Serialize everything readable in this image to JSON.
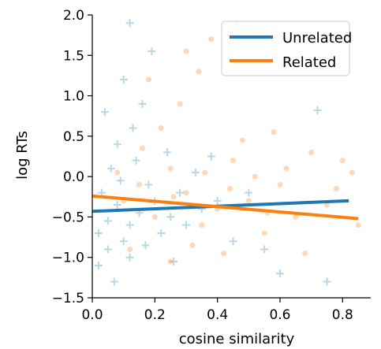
{
  "chart_data": {
    "type": "scatter",
    "xlabel": "cosine similarity",
    "ylabel": "log RTs",
    "xlim": [
      0.0,
      0.89
    ],
    "ylim": [
      -1.5,
      2.0
    ],
    "x_ticks": [
      "0.0",
      "0.2",
      "0.4",
      "0.6",
      "0.8"
    ],
    "x_tick_values": [
      0.0,
      0.2,
      0.4,
      0.6,
      0.8
    ],
    "y_ticks": [
      "−1.5",
      "−1.0",
      "−0.5",
      "0.0",
      "0.5",
      "1.0",
      "1.5",
      "2.0"
    ],
    "y_tick_values": [
      -1.5,
      -1.0,
      -0.5,
      0.0,
      0.5,
      1.0,
      1.5,
      2.0
    ],
    "legend_position": "top-right",
    "grid": false,
    "series": [
      {
        "name": "Unrelated",
        "color": "#1f77b4",
        "marker": "plus",
        "marker_opacity": 0.15,
        "fit_line": {
          "x": [
            0.0,
            0.82
          ],
          "y": [
            -0.43,
            -0.3
          ]
        },
        "points": [
          {
            "x": 0.02,
            "y": -0.7
          },
          {
            "x": 0.05,
            "y": -0.9
          },
          {
            "x": 0.08,
            "y": -0.35
          },
          {
            "x": 0.03,
            "y": -0.2
          },
          {
            "x": 0.1,
            "y": -0.8
          },
          {
            "x": 0.12,
            "y": -0.6
          },
          {
            "x": 0.06,
            "y": 0.1
          },
          {
            "x": 0.15,
            "y": -0.45
          },
          {
            "x": 0.18,
            "y": -0.1
          },
          {
            "x": 0.2,
            "y": -0.3
          },
          {
            "x": 0.22,
            "y": -0.7
          },
          {
            "x": 0.25,
            "y": -0.5
          },
          {
            "x": 0.08,
            "y": 0.4
          },
          {
            "x": 0.04,
            "y": 0.8
          },
          {
            "x": 0.14,
            "y": 0.2
          },
          {
            "x": 0.28,
            "y": -0.2
          },
          {
            "x": 0.3,
            "y": -0.6
          },
          {
            "x": 0.35,
            "y": -0.4
          },
          {
            "x": 0.1,
            "y": 1.2
          },
          {
            "x": 0.16,
            "y": 0.9
          },
          {
            "x": 0.02,
            "y": -1.1
          },
          {
            "x": 0.07,
            "y": -1.3
          },
          {
            "x": 0.12,
            "y": -1.0
          },
          {
            "x": 0.4,
            "y": -0.3
          },
          {
            "x": 0.45,
            "y": -0.8
          },
          {
            "x": 0.5,
            "y": -0.2
          },
          {
            "x": 0.55,
            "y": -0.9
          },
          {
            "x": 0.6,
            "y": -1.2
          },
          {
            "x": 0.72,
            "y": 0.82
          },
          {
            "x": 0.75,
            "y": -1.3
          },
          {
            "x": 0.12,
            "y": 1.9
          },
          {
            "x": 0.19,
            "y": 1.55
          },
          {
            "x": 0.09,
            "y": -0.05
          },
          {
            "x": 0.24,
            "y": 0.3
          },
          {
            "x": 0.33,
            "y": 0.05
          },
          {
            "x": 0.05,
            "y": -0.55
          },
          {
            "x": 0.17,
            "y": -0.85
          },
          {
            "x": 0.26,
            "y": -1.05
          },
          {
            "x": 0.38,
            "y": 0.25
          },
          {
            "x": 0.13,
            "y": 0.6
          }
        ]
      },
      {
        "name": "Related",
        "color": "#ff7f0e",
        "marker": "circle",
        "marker_opacity": 0.15,
        "fit_line": {
          "x": [
            0.0,
            0.85
          ],
          "y": [
            -0.24,
            -0.52
          ]
        },
        "points": [
          {
            "x": 0.1,
            "y": -0.3
          },
          {
            "x": 0.15,
            "y": -0.1
          },
          {
            "x": 0.2,
            "y": -0.5
          },
          {
            "x": 0.25,
            "y": 0.1
          },
          {
            "x": 0.3,
            "y": -0.2
          },
          {
            "x": 0.35,
            "y": -0.6
          },
          {
            "x": 0.4,
            "y": -0.4
          },
          {
            "x": 0.45,
            "y": 0.2
          },
          {
            "x": 0.5,
            "y": -0.3
          },
          {
            "x": 0.55,
            "y": -0.7
          },
          {
            "x": 0.6,
            "y": -0.1
          },
          {
            "x": 0.65,
            "y": -0.5
          },
          {
            "x": 0.7,
            "y": 0.3
          },
          {
            "x": 0.75,
            "y": -0.35
          },
          {
            "x": 0.8,
            "y": 0.2
          },
          {
            "x": 0.85,
            "y": -0.6
          },
          {
            "x": 0.22,
            "y": 0.6
          },
          {
            "x": 0.28,
            "y": 0.9
          },
          {
            "x": 0.18,
            "y": 1.2
          },
          {
            "x": 0.34,
            "y": 1.3
          },
          {
            "x": 0.46,
            "y": 1.9
          },
          {
            "x": 0.38,
            "y": 1.7
          },
          {
            "x": 0.3,
            "y": 1.55
          },
          {
            "x": 0.12,
            "y": -0.9
          },
          {
            "x": 0.25,
            "y": -1.05
          },
          {
            "x": 0.32,
            "y": -0.85
          },
          {
            "x": 0.42,
            "y": -0.95
          },
          {
            "x": 0.48,
            "y": 0.45
          },
          {
            "x": 0.58,
            "y": 0.55
          },
          {
            "x": 0.68,
            "y": -0.95
          },
          {
            "x": 0.78,
            "y": -0.15
          },
          {
            "x": 0.62,
            "y": 0.1
          },
          {
            "x": 0.26,
            "y": -0.25
          },
          {
            "x": 0.36,
            "y": 0.05
          },
          {
            "x": 0.44,
            "y": -0.15
          },
          {
            "x": 0.52,
            "y": 0.0
          },
          {
            "x": 0.16,
            "y": 0.35
          },
          {
            "x": 0.08,
            "y": 0.05
          },
          {
            "x": 0.83,
            "y": 0.05
          },
          {
            "x": 0.56,
            "y": -0.45
          }
        ]
      }
    ]
  }
}
